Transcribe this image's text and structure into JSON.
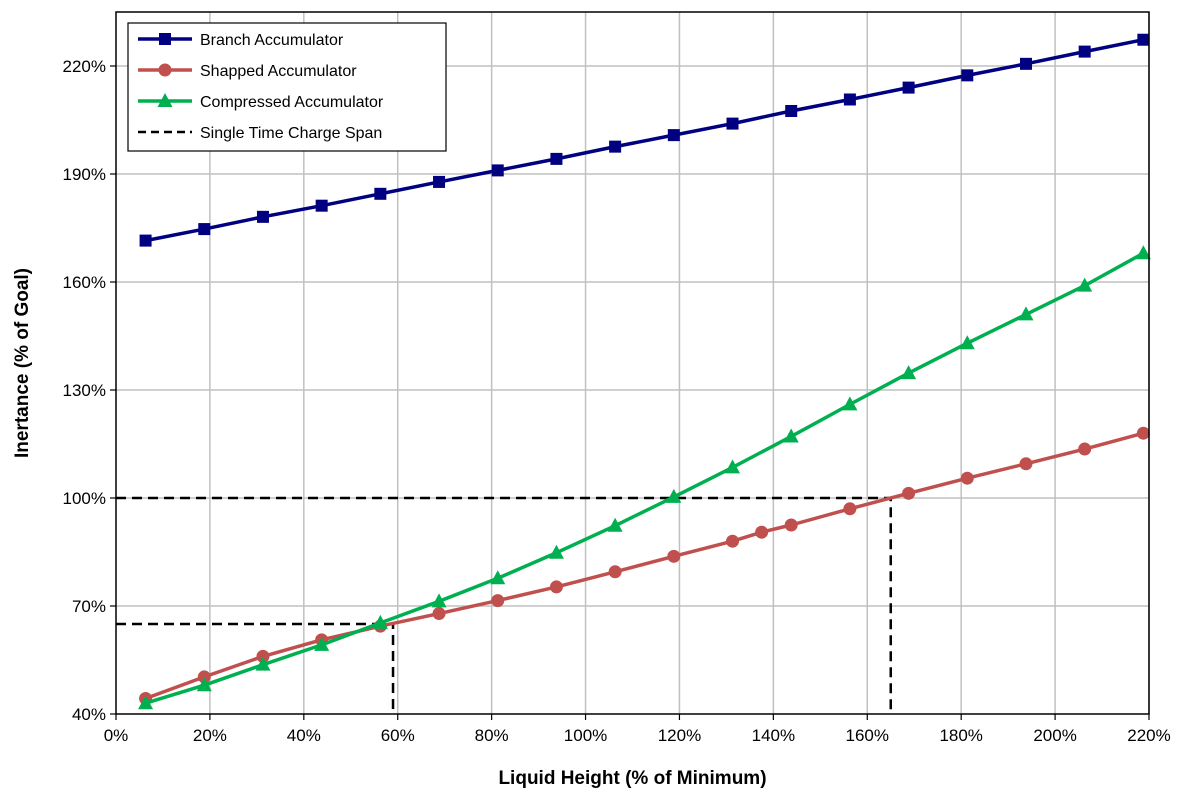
{
  "chart_data": {
    "type": "line",
    "xlabel": "Liquid Height (% of Minimum)",
    "ylabel": "Inertance (% of Goal)",
    "xlim": [
      0,
      220
    ],
    "ylim": [
      40,
      235
    ],
    "x_ticks": [
      0,
      20,
      40,
      60,
      80,
      100,
      120,
      140,
      160,
      180,
      200,
      220
    ],
    "x_tick_labels": [
      "0%",
      "20%",
      "40%",
      "60%",
      "80%",
      "100%",
      "120%",
      "140%",
      "160%",
      "180%",
      "200%",
      "220%"
    ],
    "y_ticks": [
      40,
      70,
      100,
      130,
      160,
      190,
      220
    ],
    "y_tick_labels": [
      "40%",
      "70%",
      "100%",
      "130%",
      "160%",
      "190%",
      "220%"
    ],
    "grid": true,
    "legend_position": "top-left",
    "series": [
      {
        "name": "Branch Accumulator",
        "color": "#000080",
        "marker": "square",
        "x": [
          6.3,
          18.8,
          31.3,
          43.8,
          56.3,
          68.8,
          81.3,
          93.8,
          106.3,
          118.8,
          131.3,
          143.8,
          156.3,
          168.8,
          181.3,
          193.8,
          206.3,
          218.8
        ],
        "y": [
          171.5,
          174.7,
          178.1,
          181.2,
          184.5,
          187.8,
          191.0,
          194.2,
          197.6,
          200.8,
          204.0,
          207.5,
          210.7,
          214.0,
          217.4,
          220.6,
          224.0,
          227.3
        ]
      },
      {
        "name": "Shapped Accumulator",
        "color": "#C0504D",
        "marker": "circle",
        "x": [
          6.3,
          18.8,
          31.3,
          43.8,
          56.3,
          68.8,
          81.3,
          93.8,
          106.3,
          118.8,
          131.3,
          137.5,
          143.8,
          156.3,
          168.8,
          181.3,
          193.8,
          206.3,
          218.8
        ],
        "y": [
          44.3,
          50.3,
          56.0,
          60.6,
          64.4,
          67.9,
          71.5,
          75.3,
          79.5,
          83.8,
          88.0,
          90.5,
          92.5,
          97.0,
          101.3,
          105.5,
          109.5,
          113.6,
          118.0
        ]
      },
      {
        "name": "Compressed Accumulator",
        "color": "#00B050",
        "marker": "triangle",
        "x": [
          6.3,
          18.8,
          31.3,
          43.8,
          56.3,
          68.8,
          81.3,
          93.8,
          106.3,
          118.8,
          131.3,
          143.8,
          156.3,
          168.8,
          181.3,
          193.8,
          206.3,
          218.8
        ],
        "y": [
          43.0,
          48.0,
          53.7,
          59.2,
          65.3,
          71.3,
          77.7,
          84.8,
          92.3,
          100.3,
          108.5,
          117.1,
          126.0,
          134.7,
          143.0,
          151.0,
          159.0,
          168.0
        ]
      },
      {
        "name": "Single Time Charge Span",
        "color": "#000000",
        "dashed": true,
        "segments": [
          [
            [
              0,
              65
            ],
            [
              59,
              65
            ],
            [
              59,
              40
            ]
          ],
          [
            [
              0,
              100
            ],
            [
              165,
              100
            ],
            [
              165,
              40
            ]
          ]
        ]
      }
    ]
  }
}
